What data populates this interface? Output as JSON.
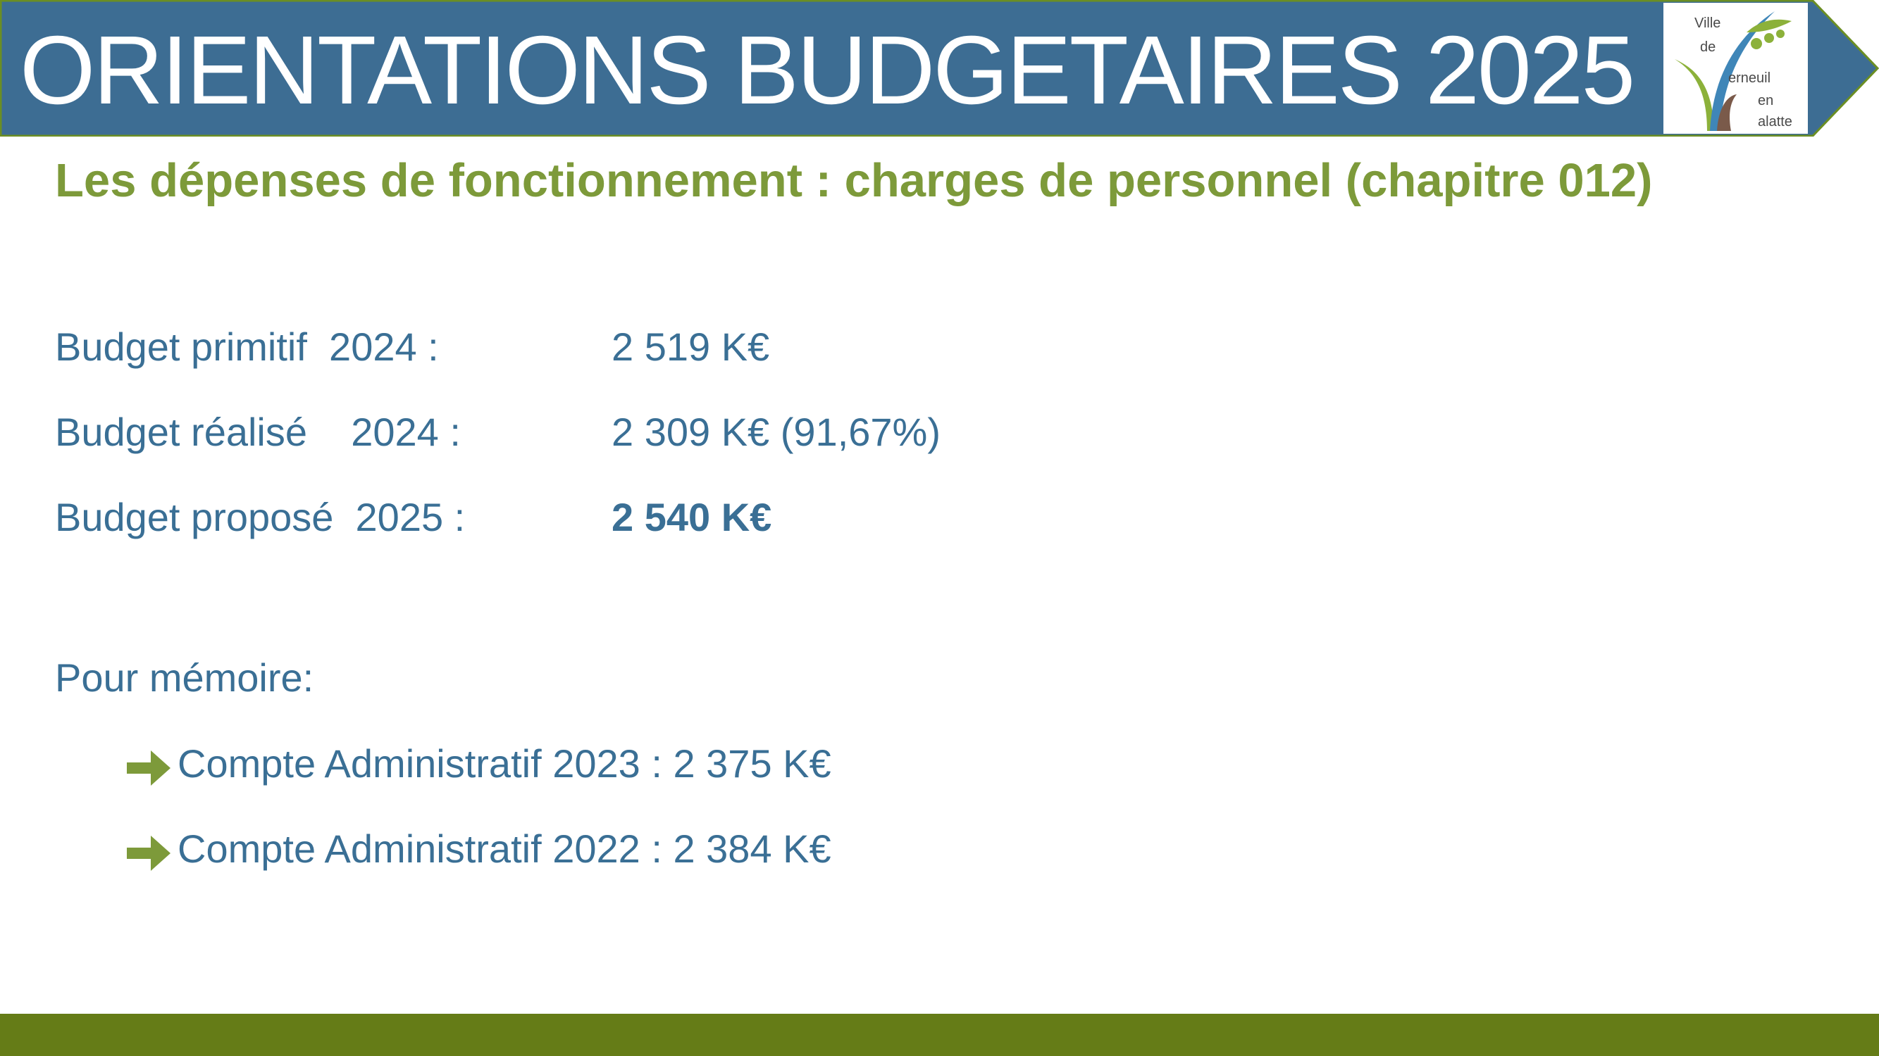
{
  "header": {
    "title": "ORIENTATIONS BUDGETAIRES 2025",
    "background_color": "#3d6d93",
    "border_color": "#6b8e23",
    "logo": {
      "line1": "Ville",
      "line2": "de",
      "line3": "erneuil",
      "line4": "en",
      "line5": "alatte"
    }
  },
  "subtitle": "Les dépenses de fonctionnement : charges de personnel (chapitre 012)",
  "budget": {
    "rows": [
      {
        "label": "Budget primitif  2024 :",
        "value": "2 519 K€"
      },
      {
        "label": "Budget réalisé    2024 :",
        "value": "2 309 K€ (91,67%)"
      },
      {
        "label": "Budget proposé  2025 :",
        "value": "2 540 K€"
      }
    ]
  },
  "memo": {
    "title": "Pour mémoire:",
    "items": [
      "Compte Administratif 2023 : 2 375 K€",
      "Compte Administratif 2022 : 2 384 K€"
    ],
    "arrow_icon": "right-arrow-icon"
  },
  "colors": {
    "accent_green": "#7d9a3a",
    "text_blue": "#3a6f95",
    "footer_green": "#657c17"
  }
}
